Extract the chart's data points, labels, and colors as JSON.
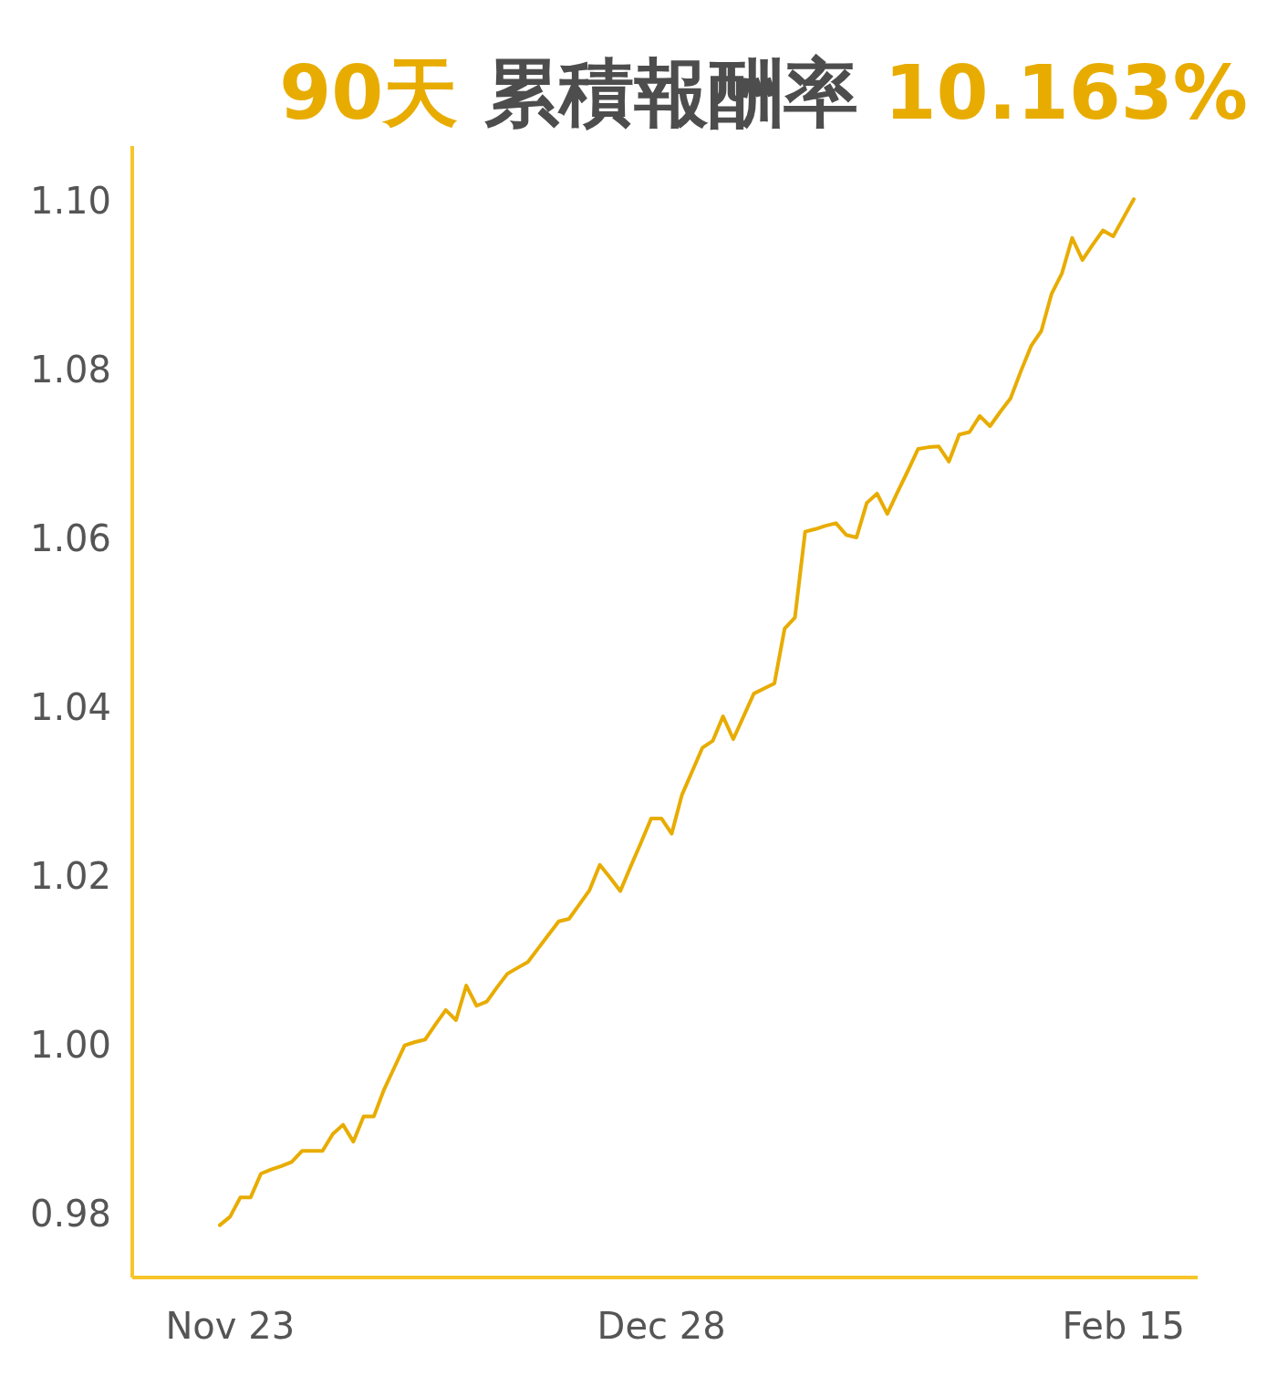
{
  "chart_data": {
    "type": "line",
    "title": "90天 累積報酬率 10.163%",
    "ylim": [
      0.9724,
      1.1065
    ],
    "yticks": [
      {
        "value": 0.98,
        "label": "0.98"
      },
      {
        "value": 1.0,
        "label": "1.00"
      },
      {
        "value": 1.02,
        "label": "1.02"
      },
      {
        "value": 1.04,
        "label": "1.04"
      },
      {
        "value": 1.06,
        "label": "1.06"
      },
      {
        "value": 1.08,
        "label": "1.08"
      },
      {
        "value": 1.1,
        "label": "1.10"
      }
    ],
    "categories": [
      null,
      "Nov 23",
      null,
      null,
      null,
      null,
      null,
      null,
      null,
      null,
      null,
      null,
      null,
      null,
      null,
      null,
      null,
      null,
      null,
      null,
      null,
      null,
      null,
      null,
      null,
      null,
      null,
      null,
      null,
      null,
      null,
      null,
      null,
      null,
      null,
      null,
      null,
      null,
      null,
      null,
      null,
      null,
      null,
      "Dec 28",
      null,
      null,
      null,
      null,
      null,
      null,
      null,
      null,
      null,
      null,
      null,
      null,
      null,
      null,
      null,
      null,
      null,
      null,
      null,
      null,
      null,
      null,
      null,
      null,
      null,
      null,
      null,
      null,
      null,
      null,
      null,
      null,
      null,
      null,
      null,
      null,
      null,
      null,
      null,
      null,
      null,
      null,
      null,
      null,
      "Feb 15",
      null
    ],
    "series": [
      {
        "color": "#e8ac00",
        "values": [
          0.9786,
          0.9796,
          0.9819,
          0.9819,
          0.9847,
          0.9852,
          0.9856,
          0.9861,
          0.9874,
          0.9874,
          0.9874,
          0.9894,
          0.9905,
          0.9885,
          0.9915,
          0.9915,
          0.9947,
          0.9973,
          0.9999,
          1.0003,
          1.0006,
          1.0024,
          1.0041,
          1.0029,
          1.007,
          1.0046,
          1.0051,
          1.0068,
          1.0084,
          1.0091,
          1.0098,
          1.0114,
          1.013,
          1.0146,
          1.0149,
          1.0166,
          1.0183,
          1.0213,
          1.0198,
          1.0182,
          1.0211,
          1.0239,
          1.0268,
          1.0268,
          1.025,
          1.0296,
          1.0324,
          1.0352,
          1.036,
          1.0389,
          1.0362,
          1.0389,
          1.0416,
          1.0422,
          1.0428,
          1.0493,
          1.0506,
          1.0608,
          1.0611,
          1.0615,
          1.0618,
          1.0604,
          1.0601,
          1.0642,
          1.0653,
          1.0629,
          1.0655,
          1.068,
          1.0706,
          1.0708,
          1.0709,
          1.0691,
          1.0723,
          1.0726,
          1.0745,
          1.0733,
          1.075,
          1.0766,
          1.0798,
          1.0828,
          1.0846,
          1.089,
          1.0914,
          1.0956,
          1.093,
          1.0948,
          1.0965,
          1.0958,
          1.098,
          1.1002
        ]
      }
    ]
  }
}
